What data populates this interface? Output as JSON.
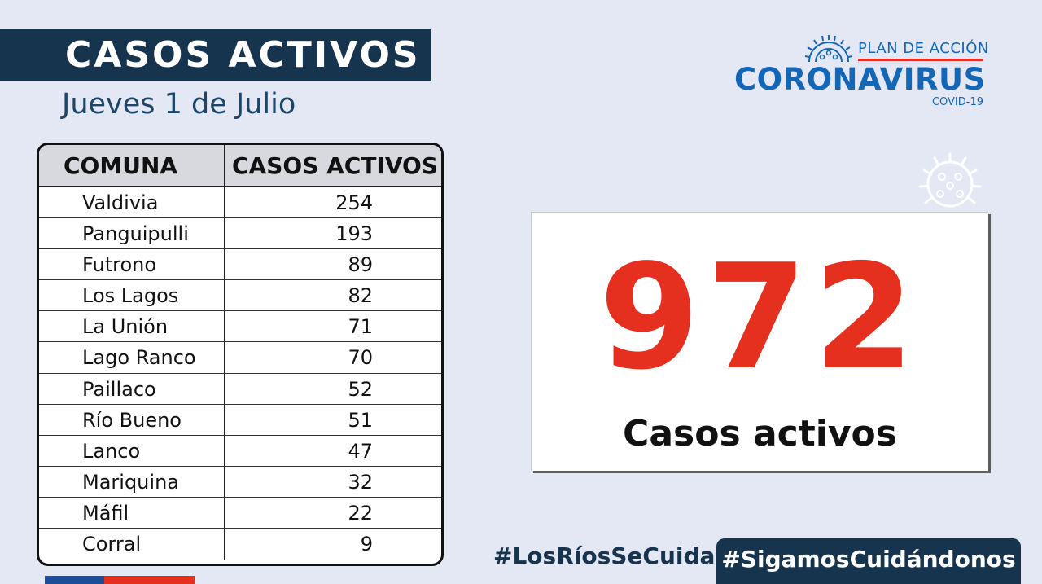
{
  "header": {
    "title": "CASOS ACTIVOS",
    "date": "Jueves 1 de Julio"
  },
  "logo": {
    "plan": "PLAN DE ACCIÓN",
    "name": "CORONAVIRUS",
    "sub": "COVID-19",
    "icon": "virus-icon"
  },
  "table": {
    "headers": [
      "COMUNA",
      "CASOS ACTIVOS"
    ],
    "rows": [
      {
        "comuna": "Valdivia",
        "casos": "254"
      },
      {
        "comuna": "Panguipulli",
        "casos": "193"
      },
      {
        "comuna": "Futrono",
        "casos": "89"
      },
      {
        "comuna": "Los Lagos",
        "casos": "82"
      },
      {
        "comuna": "La Unión",
        "casos": "71"
      },
      {
        "comuna": "Lago Ranco",
        "casos": "70"
      },
      {
        "comuna": "Paillaco",
        "casos": "52"
      },
      {
        "comuna": "Río Bueno",
        "casos": "51"
      },
      {
        "comuna": "Lanco",
        "casos": "47"
      },
      {
        "comuna": "Mariquina",
        "casos": "32"
      },
      {
        "comuna": "Máfil",
        "casos": "22"
      },
      {
        "comuna": "Corral",
        "casos": "9"
      }
    ]
  },
  "total": {
    "value": "972",
    "label": "Casos activos"
  },
  "hashtags": {
    "first": "#LosRíosSeCuida",
    "second": "#SigamosCuidándonos"
  },
  "colors": {
    "navy": "#17344e",
    "red": "#e5301f",
    "brand_blue": "#1466b7",
    "background": "#e4e8f5"
  }
}
